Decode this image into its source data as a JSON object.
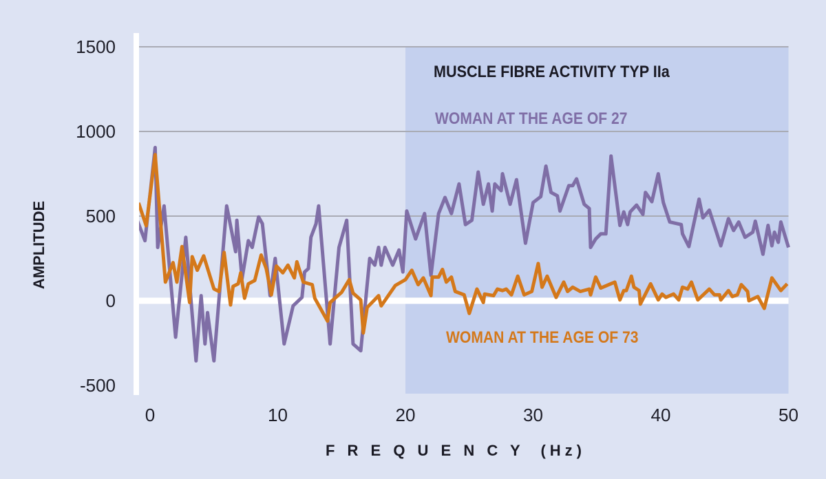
{
  "chart_data": {
    "type": "line",
    "title": "MUSCLE FIBRE ACTIVITY TYP IIa",
    "xlabel": "F R E Q U E N C Y  (Hz)",
    "ylabel": "AMPLITUDE",
    "xlim": [
      -1,
      50
    ],
    "ylim": [
      -500,
      1500
    ],
    "xticks": [
      0,
      10,
      20,
      30,
      40,
      50
    ],
    "xtick_labels": [
      "0",
      "10",
      "20",
      "30",
      "40",
      "50"
    ],
    "yticks": [
      1500,
      1000,
      500,
      0,
      -500
    ],
    "ytick_labels": [
      "1500",
      "1000",
      "500",
      "0",
      "-500"
    ],
    "highlight_region": [
      20,
      50
    ],
    "grid": true,
    "colors": {
      "background": "#dde3f3",
      "highlight": "#c4d0ee",
      "grid": "#a9abb4",
      "series_27": "#7f6ea6",
      "series_73": "#d4781a"
    },
    "series": [
      {
        "name": "WOMAN AT THE AGE OF 27",
        "color": "#7f6ea6",
        "x": [
          -1,
          -0.4,
          0.4,
          0.6,
          1.1,
          2,
          2.8,
          3.6,
          4,
          4.3,
          4.5,
          5,
          6,
          6.7,
          6.8,
          7.2,
          7.7,
          8,
          8.5,
          8.8,
          9.4,
          9.8,
          10.5,
          11.2,
          11.9,
          12.1,
          12.4,
          12.6,
          13,
          13.2,
          14.1,
          14.8,
          15.4,
          15.9,
          16.5,
          17.2,
          17.6,
          17.9,
          18.1,
          18.4,
          19,
          19.5,
          19.8,
          20.1,
          20.8,
          21.5,
          22,
          22.6,
          23.1,
          23.6,
          24.2,
          24.7,
          25.2,
          25.7,
          26.1,
          26.5,
          26.8,
          27,
          27.5,
          27.6,
          28.2,
          28.7,
          29.4,
          30,
          30.6,
          31,
          31.4,
          31.9,
          32.1,
          32.8,
          33.1,
          33.4,
          34,
          34.4,
          34.5,
          34.9,
          35.3,
          35.7,
          36.1,
          36.8,
          37.1,
          37.4,
          37.6,
          38.1,
          38.6,
          38.8,
          39.3,
          39.8,
          40.2,
          40.7,
          41.6,
          41.7,
          42.2,
          43,
          43.3,
          43.8,
          44.7,
          45.3,
          45.7,
          46.1,
          46.6,
          47.2,
          47.4,
          48,
          48.4,
          48.7,
          48.9,
          49.2,
          49.4,
          50
        ],
        "y": [
          475,
          355,
          905,
          315,
          560,
          -215,
          375,
          -355,
          30,
          -255,
          -70,
          -355,
          560,
          290,
          475,
          130,
          355,
          315,
          495,
          455,
          30,
          250,
          -255,
          -30,
          20,
          170,
          190,
          375,
          455,
          560,
          -255,
          315,
          475,
          -255,
          -295,
          250,
          210,
          315,
          210,
          315,
          210,
          300,
          170,
          530,
          365,
          515,
          150,
          515,
          610,
          515,
          690,
          450,
          475,
          760,
          570,
          690,
          530,
          690,
          650,
          750,
          570,
          715,
          340,
          580,
          615,
          795,
          640,
          620,
          530,
          680,
          680,
          720,
          570,
          545,
          315,
          365,
          395,
          395,
          855,
          445,
          525,
          450,
          525,
          565,
          510,
          640,
          585,
          750,
          580,
          465,
          450,
          395,
          320,
          600,
          490,
          535,
          325,
          485,
          415,
          465,
          375,
          405,
          470,
          275,
          445,
          325,
          405,
          345,
          465,
          315
        ]
      },
      {
        "name": "WOMAN AT THE AGE OF 73",
        "color": "#d4781a",
        "x": [
          -0.9,
          -0.3,
          0.4,
          1.2,
          1.8,
          2.1,
          2.5,
          3.1,
          3.3,
          3.7,
          4.2,
          5,
          5.4,
          5.8,
          6.3,
          6.5,
          6.9,
          7.1,
          7.4,
          7.7,
          8.2,
          8.7,
          9.1,
          9.5,
          9.9,
          10.4,
          10.8,
          11.3,
          11.5,
          12,
          12.7,
          12.9,
          13.9,
          14.1,
          15,
          15.6,
          15.9,
          16.5,
          16.7,
          17,
          17.9,
          18.1,
          19.2,
          20,
          20.5,
          21,
          21.4,
          22,
          22.1,
          22.6,
          22.9,
          23.2,
          23.6,
          23.9,
          24.6,
          25,
          25.6,
          26.1,
          26.2,
          26.9,
          27.2,
          27.6,
          27.9,
          28.3,
          28.8,
          29.3,
          29.9,
          30.4,
          30.7,
          31.1,
          31.8,
          32.4,
          32.7,
          33.1,
          33.7,
          34.4,
          34.5,
          34.9,
          35.3,
          36.4,
          36.8,
          37.1,
          37.3,
          37.7,
          37.9,
          38.3,
          38.4,
          39.2,
          39.8,
          40.1,
          40.4,
          41,
          41.4,
          41.7,
          42.1,
          42.4,
          42.9,
          43.8,
          44.2,
          44.6,
          44.7,
          45.3,
          45.6,
          46,
          46.3,
          46.8,
          46.9,
          47.6,
          48.1,
          48.7,
          49.4,
          49.9
        ],
        "y": [
          578,
          443,
          863,
          110,
          225,
          110,
          320,
          -10,
          260,
          180,
          265,
          70,
          55,
          285,
          -25,
          85,
          100,
          165,
          15,
          100,
          120,
          270,
          190,
          35,
          205,
          165,
          210,
          135,
          230,
          110,
          95,
          15,
          -120,
          -10,
          50,
          125,
          45,
          5,
          -190,
          -40,
          30,
          -30,
          90,
          125,
          180,
          95,
          135,
          30,
          140,
          140,
          185,
          110,
          140,
          55,
          35,
          -75,
          69,
          -10,
          40,
          30,
          69,
          60,
          69,
          35,
          145,
          35,
          55,
          220,
          80,
          145,
          20,
          110,
          55,
          80,
          55,
          69,
          35,
          140,
          75,
          110,
          5,
          60,
          60,
          145,
          80,
          60,
          -20,
          100,
          5,
          40,
          20,
          40,
          5,
          80,
          69,
          110,
          5,
          69,
          35,
          35,
          5,
          60,
          25,
          35,
          95,
          55,
          0,
          25,
          -45,
          135,
          60,
          100
        ]
      }
    ]
  }
}
